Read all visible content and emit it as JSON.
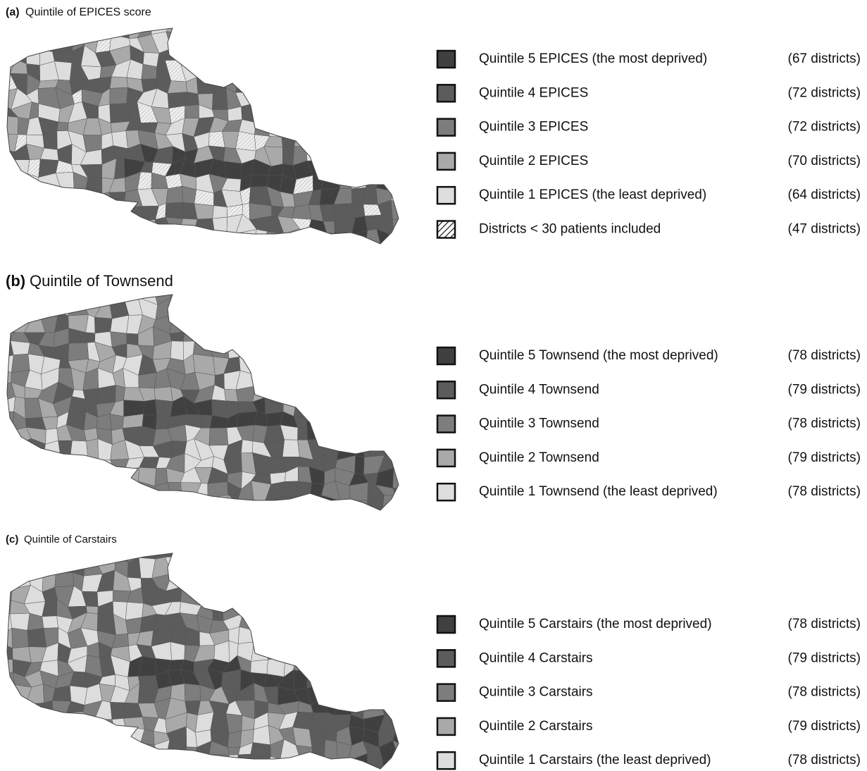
{
  "panels": [
    {
      "tag": "(a)",
      "title": "Quintile of EPICES score",
      "legend": [
        {
          "label": "Quintile 5 EPICES (the most deprived)",
          "count": "(67 districts)",
          "color": "#404040"
        },
        {
          "label": "Quintile 4 EPICES",
          "count": "(72 districts)",
          "color": "#5c5c5c"
        },
        {
          "label": "Quintile 3 EPICES",
          "count": "(72 districts)",
          "color": "#7d7d7d"
        },
        {
          "label": "Quintile 2 EPICES",
          "count": "(70 districts)",
          "color": "#a9a9a9"
        },
        {
          "label": "Quintile 1 EPICES (the least deprived)",
          "count": "(64 districts)",
          "color": "#dddddd"
        },
        {
          "label": "Districts < 30 patients included",
          "count": "(47 districts)",
          "color": "#ffffff",
          "hatched": true
        }
      ]
    },
    {
      "tag": "(b)",
      "title": "Quintile of Townsend",
      "legend": [
        {
          "label": "Quintile 5 Townsend (the most deprived)",
          "count": "(78 districts)",
          "color": "#404040"
        },
        {
          "label": "Quintile 4 Townsend",
          "count": "(79 districts)",
          "color": "#5c5c5c"
        },
        {
          "label": "Quintile 3 Townsend",
          "count": "(78 districts)",
          "color": "#7d7d7d"
        },
        {
          "label": "Quintile 2 Townsend",
          "count": "(79 districts)",
          "color": "#a9a9a9"
        },
        {
          "label": "Quintile 1 Townsend (the least deprived)",
          "count": "(78 districts)",
          "color": "#dddddd"
        }
      ]
    },
    {
      "tag": "(c)",
      "title": "Quintile of Carstairs",
      "legend": [
        {
          "label": "Quintile 5 Carstairs (the most deprived)",
          "count": "(78 districts)",
          "color": "#404040"
        },
        {
          "label": "Quintile 4 Carstairs",
          "count": "(79 districts)",
          "color": "#5c5c5c"
        },
        {
          "label": "Quintile 3 Carstairs",
          "count": "(78 districts)",
          "color": "#7d7d7d"
        },
        {
          "label": "Quintile 2 Carstairs",
          "count": "(79 districts)",
          "color": "#a9a9a9"
        },
        {
          "label": "Quintile 1 Carstairs (the least deprived)",
          "count": "(78 districts)",
          "color": "#dddddd"
        }
      ]
    }
  ]
}
